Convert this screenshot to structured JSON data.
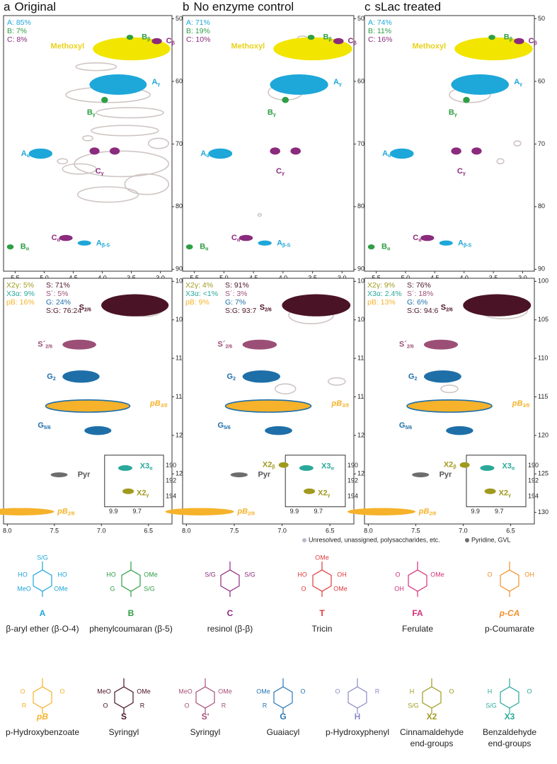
{
  "panels": [
    {
      "letter": "a",
      "title": "Original",
      "top_stats": [
        "A: 85%",
        "B: 7%",
        "C: 8%"
      ],
      "bottom_stats_left": [
        "X2γ: 5%",
        "X3α: 9%",
        "pB: 16%"
      ],
      "bottom_stats_right": [
        "S: 71%",
        "S´: 5%",
        "G: 24%",
        "S:G: 76:24"
      ]
    },
    {
      "letter": "b",
      "title": "No enzyme control",
      "top_stats": [
        "A: 71%",
        "B: 19%",
        "C: 10%"
      ],
      "bottom_stats_left": [
        "X2γ: 4%",
        "X3α: <1%",
        "pB: 9%"
      ],
      "bottom_stats_right": [
        "S: 91%",
        "S´: 3%",
        "G: 7%",
        "S:G: 93:7"
      ],
      "extra_peaks": [
        {
          "main": "X2",
          "sub": "β"
        }
      ]
    },
    {
      "letter": "c",
      "title": "sLac treated",
      "top_stats": [
        "A: 74%",
        "B: 11%",
        "C: 16%"
      ],
      "bottom_stats_left": [
        "X2γ: 9%",
        "X3α: 2.4%",
        "pB: 13%"
      ],
      "bottom_stats_right": [
        "S: 76%",
        "S´: 18%",
        "G: 6%",
        "S:G: 94:6"
      ],
      "extra_peaks": [
        {
          "main": "X2",
          "sub": "β"
        }
      ]
    }
  ],
  "top_axis": {
    "x_ticks": [
      "5.5",
      "5.0",
      "4.5",
      "4.0",
      "3.5",
      "3.0"
    ],
    "y_ticks": [
      "50",
      "60",
      "70",
      "80",
      "90"
    ]
  },
  "bottom_axis": {
    "x_ticks": [
      "8.0",
      "7.5",
      "7.0",
      "6.5"
    ],
    "y_ticks": [
      "100",
      "105",
      "110",
      "115",
      "120",
      "125",
      "130"
    ]
  },
  "inset_axis": {
    "x_ticks": [
      "9.9",
      "9.7"
    ],
    "y_ticks": [
      "190",
      "192",
      "194"
    ]
  },
  "top_peaks": [
    {
      "main": "Methoxyl",
      "sub": ""
    },
    {
      "main": "B",
      "sub": "β"
    },
    {
      "main": "C",
      "sub": "β"
    },
    {
      "main": "A",
      "sub": "γ"
    },
    {
      "main": "B",
      "sub": "γ"
    },
    {
      "main": "A",
      "sub": "α"
    },
    {
      "main": "C",
      "sub": "γ"
    },
    {
      "main": "C",
      "sub": "α"
    },
    {
      "main": "A",
      "sub": "β-S"
    },
    {
      "main": "B",
      "sub": "α"
    }
  ],
  "bottom_peaks": [
    {
      "main": "S",
      "sub": "2/6"
    },
    {
      "main": "S´",
      "sub": "2/6"
    },
    {
      "main": "G",
      "sub": "2"
    },
    {
      "main": "pB",
      "sub": "3/5"
    },
    {
      "main": "G",
      "sub": "5/6"
    },
    {
      "main": "Pyr",
      "sub": ""
    },
    {
      "main": "pB",
      "sub": "2/6"
    },
    {
      "main": "X3",
      "sub": "α"
    },
    {
      "main": "X2",
      "sub": "γ"
    }
  ],
  "footnote": [
    "Unresolved, unassigned, polysaccharides, etc.",
    "Pyridine, GVL"
  ],
  "structures": [
    {
      "code": "A",
      "name": [
        "β-aryl ether (β-O-4)"
      ],
      "atoms": [
        "HO",
        "HO",
        "MeO",
        "OMe",
        "S/G"
      ]
    },
    {
      "code": "B",
      "name": [
        "phenylcoumaran (β-5)"
      ],
      "atoms": [
        "HO",
        "OMe",
        "G",
        "S/G"
      ]
    },
    {
      "code": "C",
      "name": [
        "resinol (β-β)"
      ],
      "atoms": [
        "S/G",
        "S/G"
      ]
    },
    {
      "code": "T",
      "name": [
        "Tricin"
      ],
      "atoms": [
        "HO",
        "OH",
        "O",
        "OMe",
        "OMe"
      ]
    },
    {
      "code": "FA",
      "name": [
        "Ferulate"
      ],
      "atoms": [
        "O",
        "OMe",
        "OH"
      ]
    },
    {
      "code": "p-CA",
      "name": [
        "p-Coumarate"
      ],
      "atoms": [
        "O",
        "OH"
      ]
    },
    {
      "code": "pB",
      "name": [
        "p-Hydroxybenzoate"
      ],
      "atoms": [
        "O",
        "O",
        "R"
      ]
    },
    {
      "code": "S",
      "name": [
        "Syringyl"
      ],
      "atoms": [
        "MeO",
        "OMe",
        "O",
        "R"
      ]
    },
    {
      "code": "S'",
      "name": [
        "Syringyl"
      ],
      "atoms": [
        "MeO",
        "OMe",
        "O",
        "R"
      ]
    },
    {
      "code": "G",
      "name": [
        "Guaiacyl"
      ],
      "atoms": [
        "OMe",
        "O",
        "R"
      ]
    },
    {
      "code": "H",
      "name": [
        "p-Hydroxyphenyl"
      ],
      "atoms": [
        "O",
        "R"
      ]
    },
    {
      "code": "X2",
      "name": [
        "Cinnamaldehyde",
        "end-groups"
      ],
      "atoms": [
        "H",
        "O",
        "S/G"
      ]
    },
    {
      "code": "X3",
      "name": [
        "Benzaldehyde",
        "end-groups"
      ],
      "atoms": [
        "H",
        "O",
        "S/G"
      ]
    }
  ]
}
